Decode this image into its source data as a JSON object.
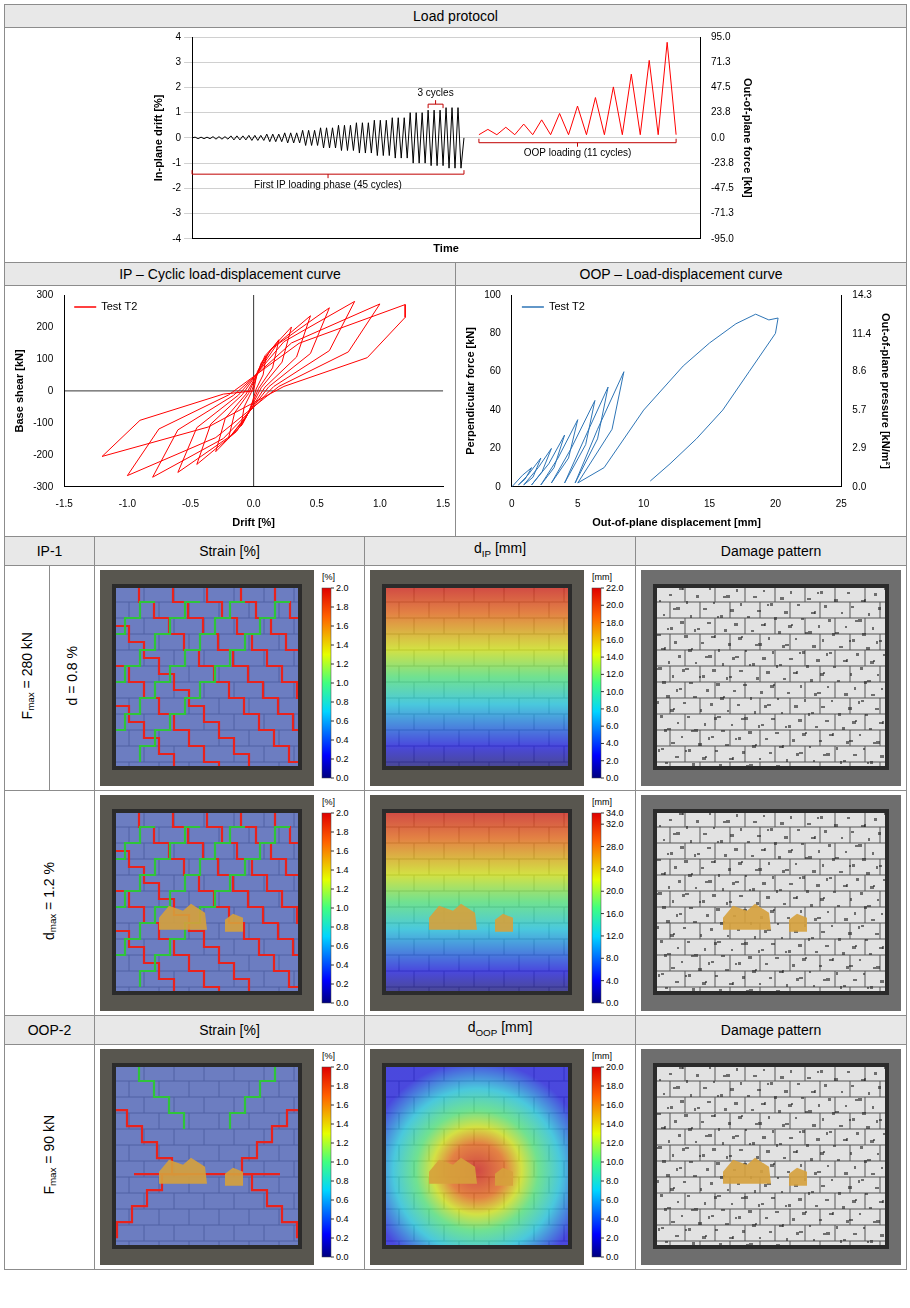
{
  "chart_data": [
    {
      "type": "line",
      "title": "Load protocol",
      "x_label": "Time",
      "y_label": "In-plane drift [%]",
      "y2_label": "Out-of-plane force [kN]",
      "xlim": [
        0,
        170
      ],
      "ylim": [
        -4,
        4
      ],
      "yticks": [
        -4,
        -3,
        -2,
        -1,
        0,
        1,
        2,
        3,
        4
      ],
      "y2lim": [
        -95,
        95
      ],
      "y2ticks": [
        {
          "value": -95,
          "label": "-95.0"
        },
        -71.3,
        -47.5,
        -23.8,
        {
          "value": 0,
          "label": "0.0"
        },
        23.8,
        47.5,
        71.3,
        {
          "value": 95,
          "label": "95.0"
        }
      ],
      "grid": true,
      "tick_labels": "y",
      "annotations": [
        {
          "text": "3 cycles"
        },
        {
          "text": "First IP loading phase (45 cycles)"
        },
        {
          "text": "OOP loading (11 cycles)"
        }
      ],
      "series": [
        {
          "color": "#000000",
          "x": [
            0,
            1,
            2,
            3,
            4,
            5,
            6,
            7,
            8,
            9,
            10,
            11,
            12,
            13,
            14,
            15,
            16,
            17,
            18,
            19,
            20,
            21,
            22,
            23,
            24,
            25,
            26,
            27,
            28,
            29,
            30,
            31,
            32,
            33,
            34,
            35,
            36,
            37,
            38,
            39,
            40,
            41,
            42,
            43,
            44,
            45,
            46,
            47,
            48,
            49,
            50,
            51,
            52,
            53,
            54,
            55,
            56,
            57,
            58,
            59,
            60,
            61,
            62,
            63,
            64,
            65,
            66,
            67,
            68,
            69,
            70,
            71,
            72,
            73,
            74,
            75,
            76,
            77,
            78,
            79,
            80,
            81,
            82,
            83,
            84,
            85,
            86,
            87,
            88,
            89,
            90,
            91
          ],
          "values": [
            0,
            0.03,
            -0.03,
            0.03,
            -0.03,
            0.03,
            -0.03,
            0.05,
            -0.05,
            0.05,
            -0.05,
            0.05,
            -0.05,
            0.08,
            -0.08,
            0.08,
            -0.08,
            0.08,
            -0.08,
            0.1,
            -0.1,
            0.1,
            -0.1,
            0.1,
            -0.1,
            0.15,
            -0.15,
            0.15,
            -0.15,
            0.15,
            -0.15,
            0.2,
            -0.2,
            0.2,
            -0.2,
            0.2,
            -0.2,
            0.3,
            -0.3,
            0.3,
            -0.3,
            0.3,
            -0.3,
            0.4,
            -0.4,
            0.4,
            -0.4,
            0.4,
            -0.4,
            0.5,
            -0.5,
            0.5,
            -0.5,
            0.5,
            -0.5,
            0.6,
            -0.6,
            0.6,
            -0.6,
            0.6,
            -0.6,
            0.7,
            -0.7,
            0.7,
            -0.7,
            0.7,
            -0.7,
            0.8,
            -0.8,
            0.8,
            -0.8,
            0.8,
            -0.8,
            1.0,
            -1.0,
            1.0,
            -1.0,
            1.0,
            -1.0,
            1.1,
            -1.1,
            1.1,
            -1.1,
            1.1,
            -1.1,
            1.2,
            -1.2,
            1.2,
            -1.2,
            1.2,
            -1.2,
            0
          ]
        },
        {
          "color": "#ff0000",
          "axis": "y2",
          "x": [
            96,
            99,
            102,
            105,
            108,
            111,
            114,
            117,
            120,
            123,
            126,
            129,
            132,
            135,
            138,
            141,
            144,
            147,
            150,
            153,
            156,
            159,
            162
          ],
          "values": [
            3,
            8,
            3,
            10,
            3,
            13,
            3,
            17,
            3,
            23,
            3,
            30,
            3,
            38,
            3,
            48,
            3,
            60,
            3,
            73,
            3,
            90,
            3
          ]
        }
      ]
    },
    {
      "type": "line",
      "title": "IP – Cyclic load-displacement curve",
      "x_label": "Drift [%]",
      "y_label": "Base shear [kN]",
      "xlim": [
        -1.5,
        1.5
      ],
      "xticks": [
        -1.5,
        {
          "value": -1,
          "label": "-1.0"
        },
        -0.5,
        {
          "value": 0,
          "label": "0.0"
        },
        0.5,
        {
          "value": 1,
          "label": "1.0"
        },
        1.5
      ],
      "ylim": [
        -300,
        300
      ],
      "yticks": [
        -300,
        -200,
        -100,
        0,
        100,
        200,
        300
      ],
      "grid": false,
      "legend": "upper left",
      "series": [
        {
          "name": "Test T2",
          "color": "#ff0000",
          "x": [
            0,
            0.03,
            0.1,
            0.075,
            0.02,
            -0.03,
            -0.1,
            -0.075,
            -0.02,
            0.06,
            0.2,
            0.15,
            0.04,
            -0.06,
            -0.2,
            -0.15,
            -0.04,
            0.09,
            0.3,
            0.225,
            0.06,
            -0.09,
            -0.3,
            -0.225,
            -0.06,
            0.135,
            0.45,
            0.34,
            0.09,
            -0.135,
            -0.45,
            -0.34,
            -0.09,
            0.18,
            0.6,
            0.45,
            0.12,
            -0.18,
            -0.6,
            -0.45,
            -0.12,
            0.24,
            0.8,
            0.6,
            0.16,
            -0.24,
            -0.8,
            -0.6,
            -0.16,
            0.3,
            1.0,
            0.75,
            0.2,
            -0.3,
            -1.0,
            -0.75,
            -0.2,
            0.36,
            1.2,
            1.2,
            0.9,
            0.24,
            -0.36,
            -1.2,
            -0.9,
            -0.24,
            0
          ],
          "values": [
            0,
            61,
            110,
            50,
            6,
            -61,
            -110,
            -50,
            -6,
            88,
            160,
            72,
            8,
            -83,
            -150,
            -68,
            -8,
            110,
            200,
            90,
            10,
            -105,
            -190,
            -86,
            -10,
            129,
            235,
            106,
            12,
            -127,
            -230,
            -104,
            -12,
            143,
            260,
            117,
            13,
            -140,
            -255,
            -115,
            -13,
            154,
            280,
            126,
            14,
            -149,
            -270,
            -122,
            -14,
            150,
            272,
            122,
            14,
            -146,
            -265,
            -119,
            -13,
            149,
            270,
            230,
            104,
            14,
            -113,
            -205,
            -92,
            -10,
            0
          ]
        }
      ]
    },
    {
      "type": "line",
      "title": "OOP – Load-displacement curve",
      "x_label": "Out-of-plane displacement [mm]",
      "y_label": "Perpendicular force [kN]",
      "y2_label": "Out-of-plane pressure [kN/m²]",
      "xlim": [
        0,
        25
      ],
      "xticks": [
        0,
        5,
        10,
        15,
        20,
        25
      ],
      "ylim": [
        0,
        100
      ],
      "yticks": [
        0,
        20,
        40,
        60,
        80,
        100
      ],
      "y2lim": [
        0,
        14.3
      ],
      "y2ticks": [
        {
          "value": 0,
          "label": "0.0"
        },
        2.9,
        5.7,
        8.6,
        11.4,
        14.3
      ],
      "grid": false,
      "legend": "upper left",
      "series": [
        {
          "name": "Test T2",
          "color": "#2e75b6",
          "x": [
            0,
            0.8,
            1.5,
            1.0,
            0.5,
            1.2,
            2.2,
            1.6,
            0.9,
            2.0,
            3.0,
            2.3,
            1.5,
            2.8,
            4.0,
            3.2,
            2.2,
            3.5,
            5.0,
            4.3,
            3.0,
            4.5,
            6.3,
            5.6,
            4.0,
            5.5,
            7.3,
            6.5,
            4.8,
            6.5,
            8.5,
            7.6,
            5.0,
            7.0,
            10.0,
            13.0,
            15.0,
            17.0,
            18.5,
            19.5,
            20.2,
            20.0,
            18.0,
            16.0,
            14.0,
            12.0,
            10.5
          ],
          "values": [
            0,
            6,
            10,
            4,
            1,
            6,
            15,
            5,
            1,
            10,
            20,
            8,
            1,
            12,
            27,
            10,
            1,
            15,
            35,
            15,
            2,
            20,
            45,
            22,
            2,
            25,
            52,
            25,
            2,
            30,
            60,
            30,
            2,
            10,
            40,
            63,
            75,
            85,
            90,
            87,
            88,
            80,
            60,
            40,
            25,
            12,
            3
          ]
        }
      ]
    }
  ],
  "table": {
    "sections": [
      {
        "head": [
          {
            "text": "IP-1"
          },
          {
            "text": "Strain [%]"
          },
          {
            "base": "d",
            "sub": "IP",
            "text": " [mm]"
          },
          {
            "text": "Damage pattern"
          }
        ],
        "rows": [
          {
            "labels": [
              {
                "base": "F",
                "sub": "max",
                "text": " = 280 kN"
              },
              {
                "text": "d = 0.8 %"
              }
            ],
            "strain_colorbar": {
              "unit": "[%]",
              "range": [
                0,
                2
              ],
              "ticks": [
                {
                  "value": 0,
                  "label": "0.0"
                },
                0.2,
                0.4,
                0.6,
                0.8,
                {
                  "value": 1,
                  "label": "1.0"
                },
                1.2,
                1.4,
                1.6,
                1.8,
                {
                  "value": 2,
                  "label": "2.0"
                }
              ]
            },
            "displacement_colorbar": {
              "unit": "[mm]",
              "range": [
                0,
                22
              ],
              "ticks": [
                {
                  "value": 0,
                  "label": "0.0"
                },
                {
                  "value": 2,
                  "label": "2.0"
                },
                {
                  "value": 4,
                  "label": "4.0"
                },
                {
                  "value": 6,
                  "label": "6.0"
                },
                {
                  "value": 8,
                  "label": "8.0"
                },
                {
                  "value": 10,
                  "label": "10.0"
                },
                {
                  "value": 12,
                  "label": "12.0"
                },
                {
                  "value": 14,
                  "label": "14.0"
                },
                {
                  "value": 16,
                  "label": "16.0"
                },
                {
                  "value": 18,
                  "label": "18.0"
                },
                {
                  "value": 20,
                  "label": "20.0"
                },
                {
                  "value": 22,
                  "label": "22.0"
                }
              ]
            }
          },
          {
            "labels": [
              {
                "base": "d",
                "sub": "max",
                "text": " = 1.2 %"
              }
            ],
            "strain_colorbar": {
              "unit": "[%]",
              "range": [
                0,
                2
              ],
              "ticks": [
                {
                  "value": 0,
                  "label": "0.0"
                },
                0.2,
                0.4,
                0.6,
                0.8,
                {
                  "value": 1,
                  "label": "1.0"
                },
                1.2,
                1.4,
                1.6,
                1.8,
                {
                  "value": 2,
                  "label": "2.0"
                }
              ]
            },
            "displacement_colorbar": {
              "unit": "[mm]",
              "range": [
                0,
                34
              ],
              "ticks": [
                {
                  "value": 0,
                  "label": "0.0"
                },
                {
                  "value": 4,
                  "label": "4.0"
                },
                {
                  "value": 8,
                  "label": "8.0"
                },
                {
                  "value": 12,
                  "label": "12.0"
                },
                {
                  "value": 16,
                  "label": "16.0"
                },
                {
                  "value": 20,
                  "label": "20.0"
                },
                {
                  "value": 24,
                  "label": "24.0"
                },
                {
                  "value": 28,
                  "label": "28.0"
                },
                {
                  "value": 32,
                  "label": "32.0"
                },
                {
                  "value": 34,
                  "label": "34.0"
                }
              ]
            }
          }
        ]
      },
      {
        "head": [
          {
            "text": "OOP-2"
          },
          {
            "text": "Strain [%]"
          },
          {
            "base": "d",
            "sub": "OOP",
            "text": " [mm]"
          },
          {
            "text": "Damage pattern"
          }
        ],
        "rows": [
          {
            "labels": [
              {
                "base": "F",
                "sub": "max",
                "text": " = 90 kN"
              }
            ],
            "strain_colorbar": {
              "unit": "[%]",
              "range": [
                0,
                2
              ],
              "ticks": [
                {
                  "value": 0,
                  "label": "0.0"
                },
                0.2,
                0.4,
                0.6,
                0.8,
                {
                  "value": 1,
                  "label": "1.0"
                },
                1.2,
                1.4,
                1.6,
                1.8,
                {
                  "value": 2,
                  "label": "2.0"
                }
              ]
            },
            "displacement_colorbar": {
              "unit": "[mm]",
              "range": [
                0,
                20
              ],
              "ticks": [
                {
                  "value": 0,
                  "label": "0.0"
                },
                {
                  "value": 2,
                  "label": "2.0"
                },
                {
                  "value": 4,
                  "label": "4.0"
                },
                {
                  "value": 6,
                  "label": "6.0"
                },
                {
                  "value": 8,
                  "label": "8.0"
                },
                {
                  "value": 10,
                  "label": "10.0"
                },
                {
                  "value": 12,
                  "label": "12.0"
                },
                {
                  "value": 14,
                  "label": "14.0"
                },
                {
                  "value": 16,
                  "label": "16.0"
                },
                {
                  "value": 18,
                  "label": "18.0"
                },
                {
                  "value": 20,
                  "label": "20.0"
                }
              ]
            }
          }
        ]
      }
    ]
  }
}
